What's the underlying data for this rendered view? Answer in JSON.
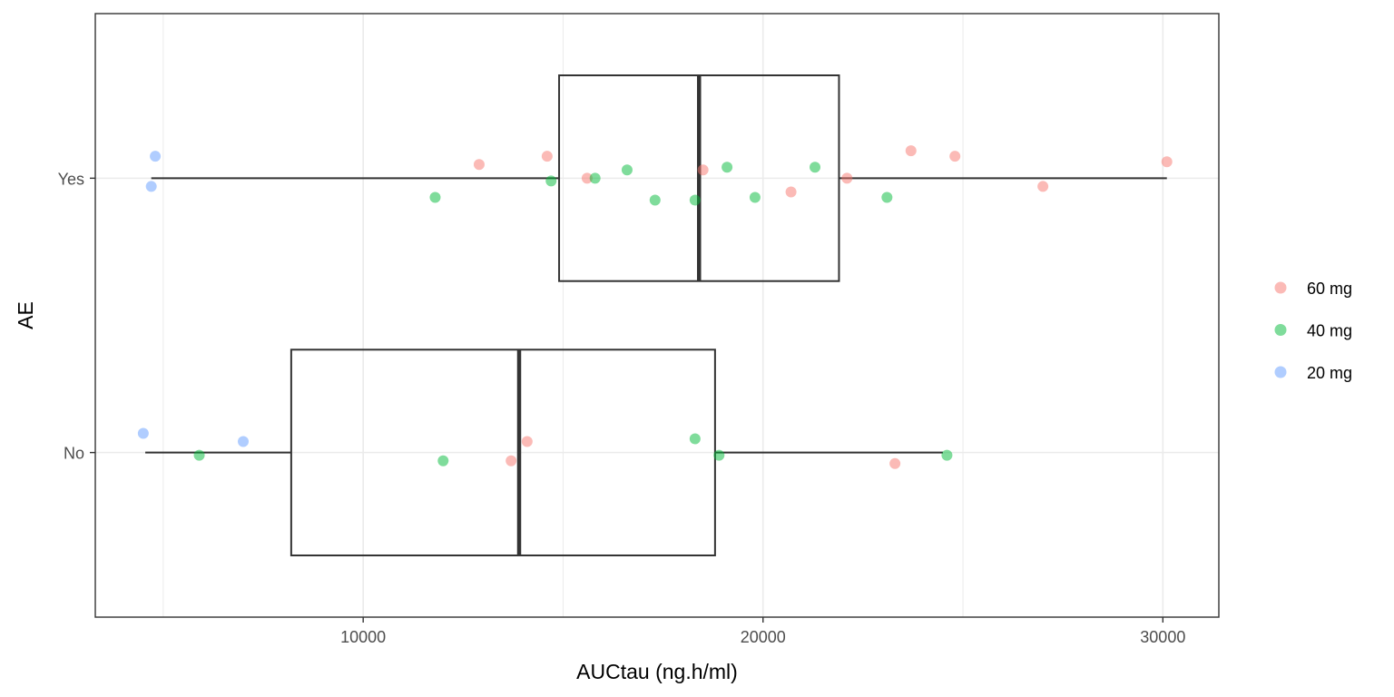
{
  "chart_data": {
    "type": "boxplot",
    "orientation": "horizontal",
    "title": "",
    "xlabel": "AUCtau (ng.h/ml)",
    "ylabel": "AE",
    "xlim": [
      3300,
      31400
    ],
    "xticks": [
      10000,
      20000,
      30000
    ],
    "x_minor_gridlines": [
      5000,
      15000,
      25000
    ],
    "x_tick_labels": [
      "10000",
      "20000",
      "30000"
    ],
    "categories": [
      "No",
      "Yes"
    ],
    "grid": true,
    "legend": {
      "placement": "right",
      "entries": [
        {
          "label": "60 mg",
          "color": "#F8766D"
        },
        {
          "label": "40 mg",
          "color": "#00BA38"
        },
        {
          "label": "20 mg",
          "color": "#619CFF"
        }
      ]
    },
    "boxes": [
      {
        "category": "Yes",
        "whisker_low": 4700,
        "q1": 14900,
        "median": 18400,
        "q3": 21900,
        "whisker_high": 30100
      },
      {
        "category": "No",
        "whisker_low": 4550,
        "q1": 8200,
        "median": 13900,
        "q3": 18800,
        "whisker_high": 24500
      }
    ],
    "points": [
      {
        "category": "Yes",
        "group": "20 mg",
        "x": 4800,
        "jitter": 0.08
      },
      {
        "category": "Yes",
        "group": "20 mg",
        "x": 4700,
        "jitter": -0.03
      },
      {
        "category": "Yes",
        "group": "60 mg",
        "x": 12900,
        "jitter": 0.05
      },
      {
        "category": "Yes",
        "group": "60 mg",
        "x": 14600,
        "jitter": 0.08
      },
      {
        "category": "Yes",
        "group": "60 mg",
        "x": 15600,
        "jitter": 0.0
      },
      {
        "category": "Yes",
        "group": "60 mg",
        "x": 18500,
        "jitter": 0.03
      },
      {
        "category": "Yes",
        "group": "60 mg",
        "x": 20700,
        "jitter": -0.05
      },
      {
        "category": "Yes",
        "group": "60 mg",
        "x": 22100,
        "jitter": 0.0
      },
      {
        "category": "Yes",
        "group": "60 mg",
        "x": 23700,
        "jitter": 0.1
      },
      {
        "category": "Yes",
        "group": "60 mg",
        "x": 24800,
        "jitter": 0.08
      },
      {
        "category": "Yes",
        "group": "60 mg",
        "x": 27000,
        "jitter": -0.03
      },
      {
        "category": "Yes",
        "group": "60 mg",
        "x": 30100,
        "jitter": 0.06
      },
      {
        "category": "Yes",
        "group": "40 mg",
        "x": 11800,
        "jitter": -0.07
      },
      {
        "category": "Yes",
        "group": "40 mg",
        "x": 14700,
        "jitter": -0.01
      },
      {
        "category": "Yes",
        "group": "40 mg",
        "x": 15800,
        "jitter": 0.0
      },
      {
        "category": "Yes",
        "group": "40 mg",
        "x": 16600,
        "jitter": 0.03
      },
      {
        "category": "Yes",
        "group": "40 mg",
        "x": 17300,
        "jitter": -0.08
      },
      {
        "category": "Yes",
        "group": "40 mg",
        "x": 18300,
        "jitter": -0.08
      },
      {
        "category": "Yes",
        "group": "40 mg",
        "x": 19100,
        "jitter": 0.04
      },
      {
        "category": "Yes",
        "group": "40 mg",
        "x": 19800,
        "jitter": -0.07
      },
      {
        "category": "Yes",
        "group": "40 mg",
        "x": 21300,
        "jitter": 0.04
      },
      {
        "category": "Yes",
        "group": "40 mg",
        "x": 23100,
        "jitter": -0.07
      },
      {
        "category": "No",
        "group": "20 mg",
        "x": 4500,
        "jitter": 0.07
      },
      {
        "category": "No",
        "group": "20 mg",
        "x": 7000,
        "jitter": 0.04
      },
      {
        "category": "No",
        "group": "40 mg",
        "x": 5900,
        "jitter": -0.01
      },
      {
        "category": "No",
        "group": "40 mg",
        "x": 12000,
        "jitter": -0.03
      },
      {
        "category": "No",
        "group": "40 mg",
        "x": 18300,
        "jitter": 0.05
      },
      {
        "category": "No",
        "group": "40 mg",
        "x": 18900,
        "jitter": -0.01
      },
      {
        "category": "No",
        "group": "40 mg",
        "x": 24600,
        "jitter": -0.01
      },
      {
        "category": "No",
        "group": "60 mg",
        "x": 13700,
        "jitter": -0.03
      },
      {
        "category": "No",
        "group": "60 mg",
        "x": 14100,
        "jitter": 0.04
      },
      {
        "category": "No",
        "group": "60 mg",
        "x": 23300,
        "jitter": -0.04
      }
    ]
  }
}
